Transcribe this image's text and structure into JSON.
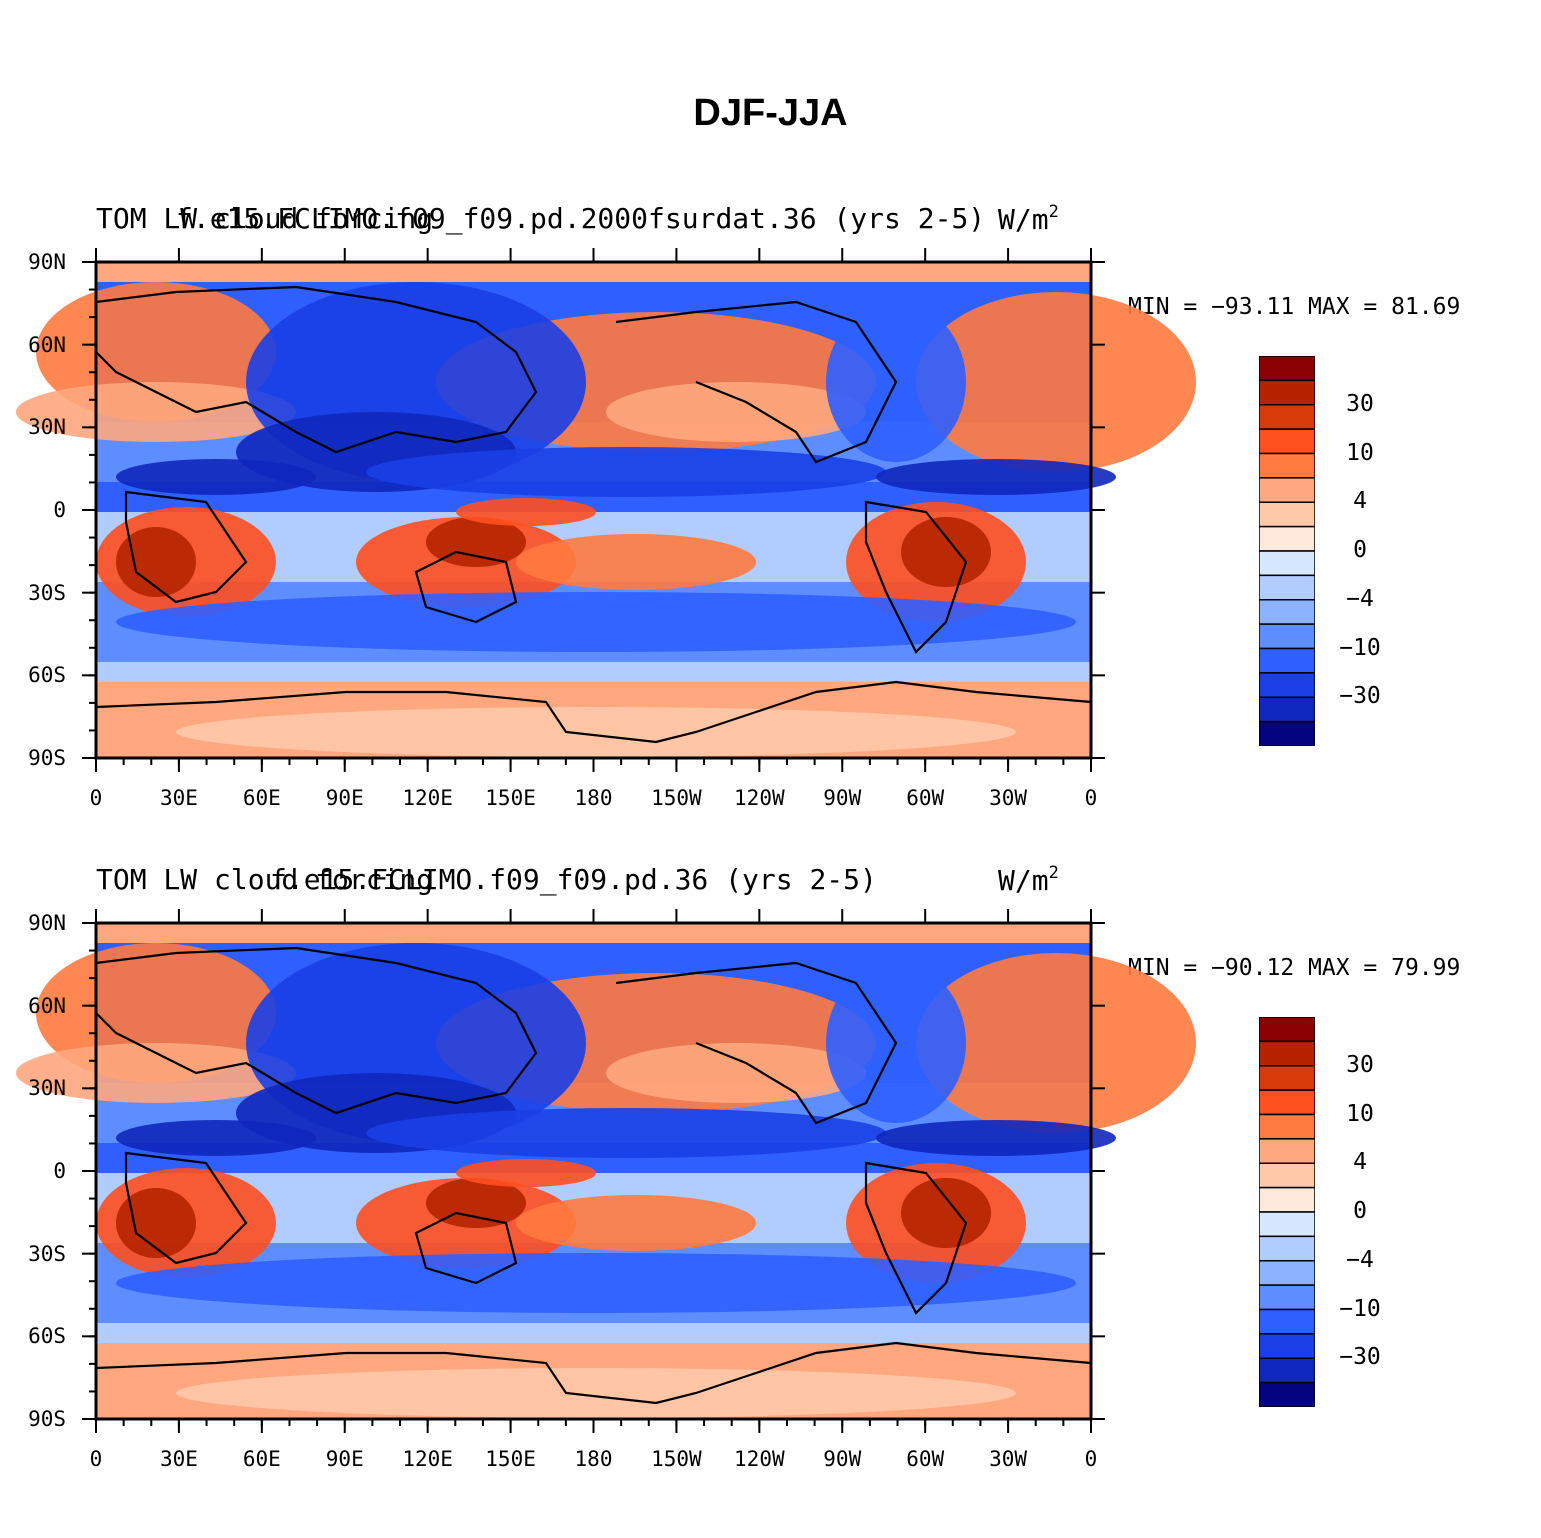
{
  "title": "DJF-JJA",
  "panels": [
    {
      "title_left": "TOM LW cloud forcing",
      "title_center": "f.e15.FCLIMO.f09_f09.pd.2000fsurdat.36 (yrs 2-5)",
      "units": "W/m",
      "units_exp": "2",
      "minmax": "MIN = −93.11 MAX =  81.69"
    },
    {
      "title_left": "TOM LW cloud forcing",
      "title_center": "f.e15.FCLIMO.f09_f09.pd.36 (yrs 2-5)",
      "units": "W/m",
      "units_exp": "2",
      "minmax": "MIN = −90.12 MAX =  79.99"
    }
  ],
  "lat_labels": [
    "90N",
    "60N",
    "30N",
    "0",
    "30S",
    "60S",
    "90S"
  ],
  "lon_labels": [
    "0",
    "30E",
    "60E",
    "90E",
    "120E",
    "150E",
    "180",
    "150W",
    "120W",
    "90W",
    "60W",
    "30W",
    "0"
  ],
  "colorbar": {
    "labels": [
      "30",
      "10",
      "4",
      "0",
      "−4",
      "−10",
      "−30"
    ],
    "colors": [
      "#8b0000",
      "#b52300",
      "#d93a0a",
      "#ff4f1f",
      "#ff7a3f",
      "#ffa77e",
      "#ffc9aa",
      "#ffe9dc",
      "#d6e8ff",
      "#b1cdff",
      "#8db2ff",
      "#5e8dff",
      "#2f5fff",
      "#1a3fe6",
      "#0f27bd",
      "#04057e"
    ]
  },
  "chart_data": {
    "type": "heatmap",
    "variable": "TOM LW cloud forcing",
    "units": "W/m2",
    "contour_levels": [
      -40,
      -30,
      -20,
      -10,
      -6,
      -4,
      -2,
      0,
      2,
      4,
      6,
      10,
      20,
      30,
      40
    ],
    "x_range": [
      0,
      360
    ],
    "y_range": [
      -90,
      90
    ],
    "panels": [
      {
        "case": "f.e15.FCLIMO.f09_f09.pd.2000fsurdat.36 (yrs 2-5)",
        "min": -93.11,
        "max": 81.69
      },
      {
        "case": "f.e15.FCLIMO.f09_f09.pd.36 (yrs 2-5)",
        "min": -90.12,
        "max": 79.99
      }
    ]
  }
}
